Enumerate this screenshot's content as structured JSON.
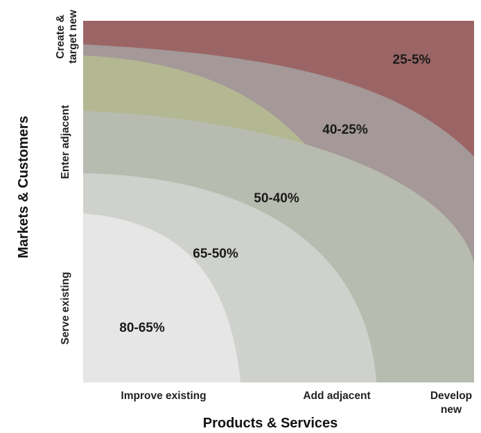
{
  "zones": [
    {
      "label": "80-65%",
      "color": "#e6e6e6"
    },
    {
      "label": "65-50%",
      "color": "#cfd1cc"
    },
    {
      "label": "50-40%",
      "color": "#b8bcb0"
    },
    {
      "label": "40-25%",
      "color": "#a49898"
    },
    {
      "label": "25-5%",
      "color": "#9b6565"
    }
  ],
  "accent_zone_color": "#b3b792",
  "x_axis": {
    "title": "Products & Services",
    "ticks": [
      "Improve existing",
      "Add adjacent",
      "Develop",
      "new"
    ]
  },
  "y_axis": {
    "title": "Markets & Customers",
    "ticks": [
      "Serve existing",
      "Enter adjacent",
      "Create &",
      "target new"
    ]
  }
}
